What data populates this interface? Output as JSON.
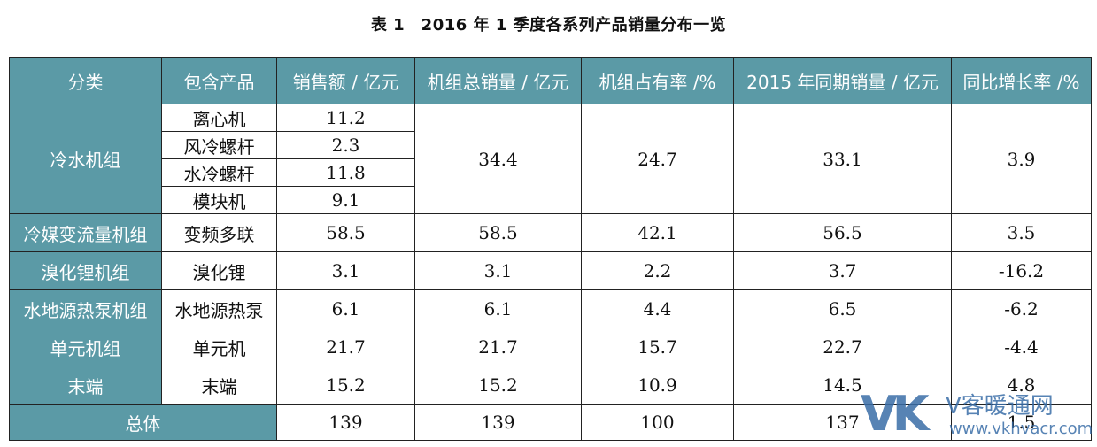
{
  "caption": "表 1　2016 年 1 季度各系列产品销量分布一览",
  "headers": [
    "分类",
    "包含产品",
    "销售额 / 亿元",
    "机组总销量 / 亿元",
    "机组占有率 /%",
    "2015 年同期销量 / 亿元",
    "同比增长率 /%"
  ],
  "chiller": {
    "category": "冷水机组",
    "products": [
      {
        "name": "离心机",
        "sales": "11.2"
      },
      {
        "name": "风冷螺杆",
        "sales": "2.3"
      },
      {
        "name": "水冷螺杆",
        "sales": "11.8"
      },
      {
        "name": "模块机",
        "sales": "9.1"
      }
    ],
    "total": "34.4",
    "share": "24.7",
    "prev": "33.1",
    "growth": "3.9"
  },
  "rows": [
    {
      "category": "冷媒变流量机组",
      "product": "变频多联",
      "sales": "58.5",
      "total": "58.5",
      "share": "42.1",
      "prev": "56.5",
      "growth": "3.5"
    },
    {
      "category": "溴化锂机组",
      "product": "溴化锂",
      "sales": "3.1",
      "total": "3.1",
      "share": "2.2",
      "prev": "3.7",
      "growth": "-16.2"
    },
    {
      "category": "水地源热泵机组",
      "product": "水地源热泵",
      "sales": "6.1",
      "total": "6.1",
      "share": "4.4",
      "prev": "6.5",
      "growth": "-6.2"
    },
    {
      "category": "单元机组",
      "product": "单元机",
      "sales": "21.7",
      "total": "21.7",
      "share": "15.7",
      "prev": "22.7",
      "growth": "-4.4"
    },
    {
      "category": "末端",
      "product": "末端",
      "sales": "15.2",
      "total": "15.2",
      "share": "10.9",
      "prev": "14.5",
      "growth": "4.8"
    }
  ],
  "summary": {
    "label": "总体",
    "sales": "139",
    "total": "139",
    "share": "100",
    "prev": "137",
    "growth": "1.5"
  },
  "watermark": {
    "logo": "VK",
    "name": "V客暖通网",
    "url": "www.vkhvacr.com"
  }
}
